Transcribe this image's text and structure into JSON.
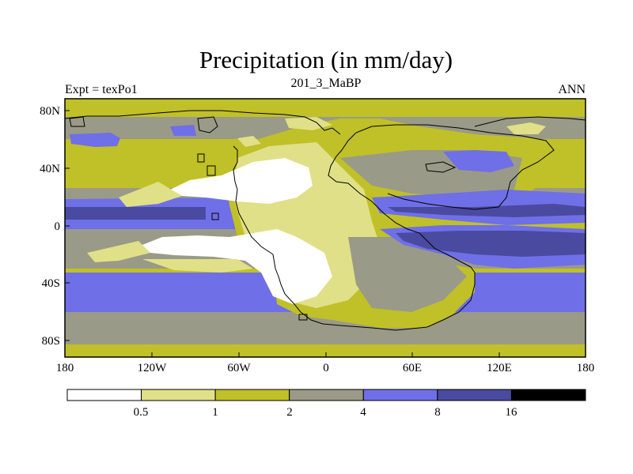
{
  "chart_data": {
    "type": "heatmap",
    "title": "Precipitation (in mm/day)",
    "left_string": "Expt = texPo1",
    "center_string": "201_3_MaBP",
    "right_string": "ANN",
    "x_ticks": [
      "180",
      "120W",
      "60W",
      "0",
      "60E",
      "120E",
      "180"
    ],
    "y_ticks": [
      "80N",
      "40N",
      "0",
      "40S",
      "80S"
    ],
    "xlim": [
      -180,
      180
    ],
    "ylim": [
      -90,
      90
    ],
    "levels": [
      "0.5",
      "1",
      "2",
      "4",
      "8",
      "16"
    ],
    "level_colors": [
      "#ffffff",
      "#e0e088",
      "#c0c028",
      "#9a9a88",
      "#6f6fe8",
      "#4a4aa0",
      "#000000"
    ],
    "features": [
      {
        "region": "Eurasia-Africa land mass",
        "category": "1-2 mm/day (mixed 0.5-4)"
      },
      {
        "region": "North Atlantic band 20-40N",
        "category": "< 0.5 mm/day"
      },
      {
        "region": "South Atlantic band 10-35S",
        "category": "< 0.5 mm/day"
      },
      {
        "region": "South African interior",
        "category": "< 0.5 mm/day"
      },
      {
        "region": "Pacific equatorial 0-10N",
        "category": "8-16 mm/day"
      },
      {
        "region": "Indian Ocean 5-20S",
        "category": "8-16 mm/day"
      },
      {
        "region": "Southern mid-latitudes 35-55S",
        "category": "4-8 mm/day"
      },
      {
        "region": "Polar regions",
        "category": "1-2 mm/day"
      }
    ]
  }
}
